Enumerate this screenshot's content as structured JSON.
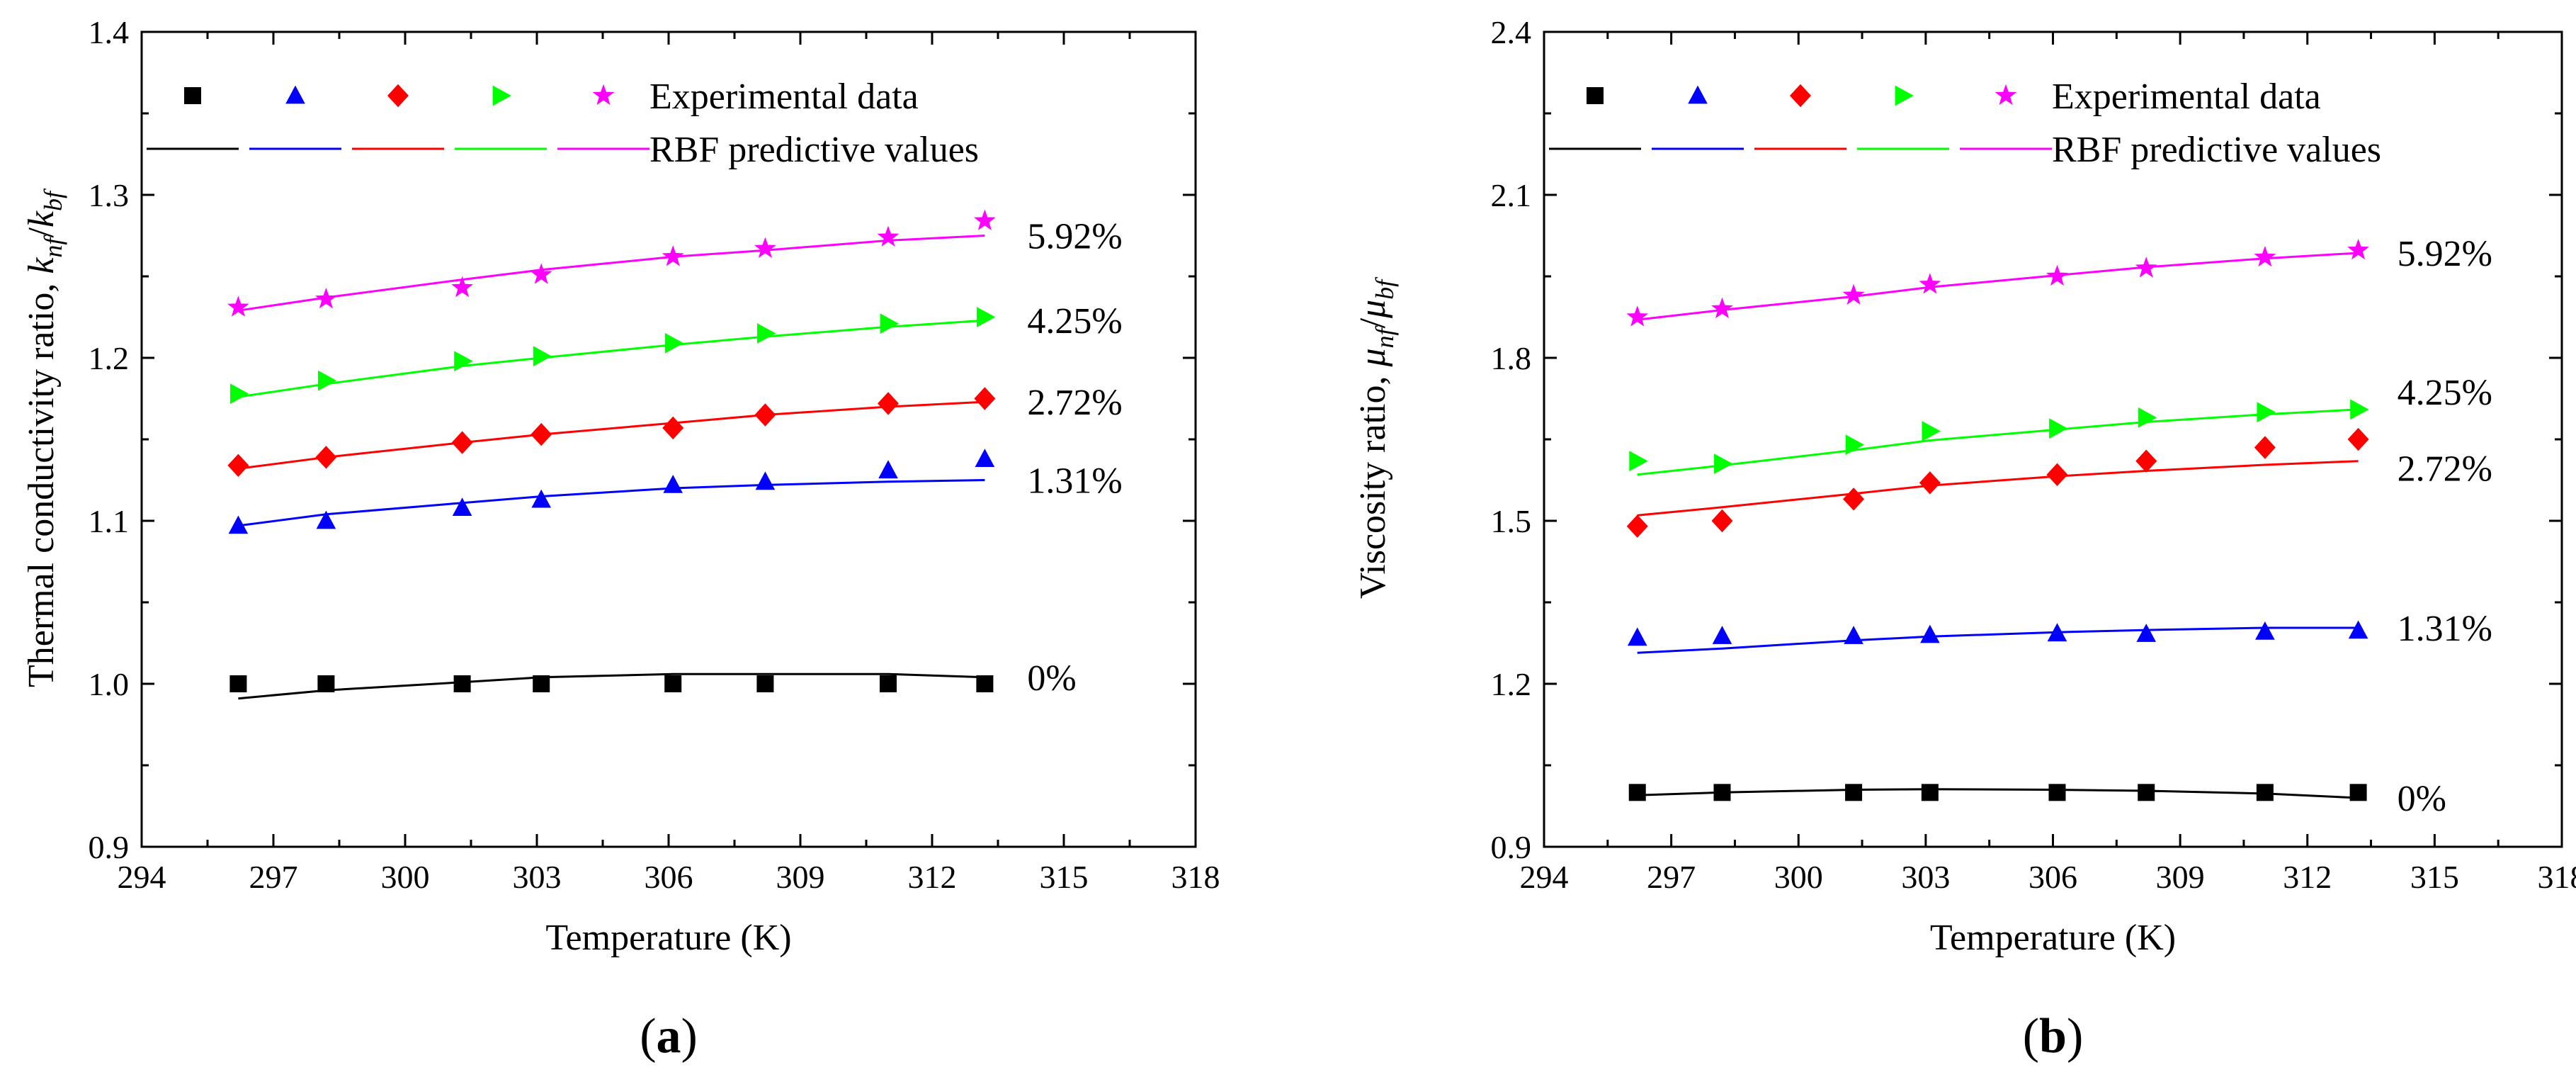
{
  "chart_data": [
    {
      "type": "scatter",
      "panel_label": "a",
      "xlabel": "Temperature (K)",
      "ylabel_prefix": "Thermal conductivity ratio, ",
      "ylabel_symbol": "k",
      "ylabel_num_sub": "nf",
      "ylabel_den_sub": "bf",
      "xlim": [
        294,
        318
      ],
      "ylim": [
        0.9,
        1.4
      ],
      "xticks": [
        "294",
        "297",
        "300",
        "303",
        "306",
        "309",
        "312",
        "315",
        "318"
      ],
      "yticks": [
        "0.9",
        "1.0",
        "1.1",
        "1.2",
        "1.3",
        "1.4"
      ],
      "grid": false,
      "legend": {
        "position": "top-left",
        "experimental_label": "Experimental data",
        "predicted_label": "RBF predictive values"
      },
      "series": [
        {
          "label": "0%",
          "color": "#000000",
          "marker": "square",
          "x": [
            296.2,
            298.2,
            301.3,
            303.1,
            306.1,
            308.2,
            311.0,
            313.2
          ],
          "experimental": [
            1.0,
            1.0,
            1.0,
            1.0,
            1.0,
            1.0,
            1.0,
            1.0
          ],
          "predicted_x": [
            296.2,
            298.2,
            301.3,
            303.1,
            306.1,
            308.2,
            311.0,
            313.2
          ],
          "predicted": [
            0.991,
            0.996,
            1.001,
            1.004,
            1.006,
            1.006,
            1.006,
            1.004
          ]
        },
        {
          "label": "1.31%",
          "color": "#0000ff",
          "marker": "triangle-up",
          "x": [
            296.2,
            298.2,
            301.3,
            303.1,
            306.1,
            308.2,
            311.0,
            313.2
          ],
          "experimental": [
            1.097,
            1.1,
            1.108,
            1.113,
            1.122,
            1.124,
            1.131,
            1.138
          ],
          "predicted_x": [
            296.2,
            298.2,
            301.3,
            303.1,
            306.1,
            308.2,
            311.0,
            313.2
          ],
          "predicted": [
            1.097,
            1.104,
            1.111,
            1.115,
            1.12,
            1.122,
            1.124,
            1.125
          ]
        },
        {
          "label": "2.72%",
          "color": "#ff0000",
          "marker": "diamond",
          "x": [
            296.2,
            298.2,
            301.3,
            303.1,
            306.1,
            308.2,
            311.0,
            313.2
          ],
          "experimental": [
            1.134,
            1.139,
            1.148,
            1.153,
            1.157,
            1.165,
            1.172,
            1.175
          ],
          "predicted_x": [
            296.2,
            298.2,
            301.3,
            303.1,
            306.1,
            308.2,
            311.0,
            313.2
          ],
          "predicted": [
            1.132,
            1.139,
            1.148,
            1.153,
            1.16,
            1.165,
            1.17,
            1.173
          ]
        },
        {
          "label": "4.25%",
          "color": "#00ff00",
          "marker": "triangle-right",
          "x": [
            296.2,
            298.2,
            301.3,
            303.1,
            306.1,
            308.2,
            311.0,
            313.2
          ],
          "experimental": [
            1.178,
            1.186,
            1.198,
            1.201,
            1.209,
            1.215,
            1.221,
            1.225
          ],
          "predicted_x": [
            296.2,
            298.2,
            301.3,
            303.1,
            306.1,
            308.2,
            311.0,
            313.2
          ],
          "predicted": [
            1.176,
            1.184,
            1.195,
            1.2,
            1.208,
            1.213,
            1.219,
            1.223
          ]
        },
        {
          "label": "5.92%",
          "color": "#ff00ff",
          "marker": "star",
          "x": [
            296.2,
            298.2,
            301.3,
            303.1,
            306.1,
            308.2,
            311.0,
            313.2
          ],
          "experimental": [
            1.231,
            1.236,
            1.243,
            1.251,
            1.262,
            1.267,
            1.274,
            1.284
          ],
          "predicted_x": [
            296.2,
            298.2,
            301.3,
            303.1,
            306.1,
            308.2,
            311.0,
            313.2
          ],
          "predicted": [
            1.229,
            1.237,
            1.248,
            1.254,
            1.262,
            1.266,
            1.272,
            1.275
          ]
        }
      ]
    },
    {
      "type": "scatter",
      "panel_label": "b",
      "xlabel": "Temperature (K)",
      "ylabel_prefix": "Viscosity ratio, ",
      "ylabel_symbol": "μ",
      "ylabel_num_sub": "nf",
      "ylabel_den_sub": "bf",
      "xlim": [
        294,
        318
      ],
      "ylim": [
        0.9,
        2.4
      ],
      "xticks": [
        "294",
        "297",
        "300",
        "303",
        "306",
        "309",
        "312",
        "315",
        "318"
      ],
      "yticks": [
        "0.9",
        "1.2",
        "1.5",
        "1.8",
        "2.1",
        "2.4"
      ],
      "grid": false,
      "legend": {
        "position": "top-left",
        "experimental_label": "Experimental data",
        "predicted_label": "RBF predictive values"
      },
      "series": [
        {
          "label": "0%",
          "color": "#000000",
          "marker": "square",
          "x": [
            296.2,
            298.2,
            301.3,
            303.1,
            306.1,
            308.2,
            311.0,
            313.2
          ],
          "experimental": [
            1.0,
            1.0,
            1.0,
            1.0,
            1.0,
            1.0,
            1.0,
            1.0
          ],
          "predicted_x": [
            296.2,
            298.2,
            301.3,
            303.1,
            306.1,
            308.2,
            311.0,
            313.2
          ],
          "predicted": [
            0.995,
            1.0,
            1.005,
            1.006,
            1.005,
            1.003,
            0.998,
            0.99
          ]
        },
        {
          "label": "1.31%",
          "color": "#0000ff",
          "marker": "triangle-up",
          "x": [
            296.2,
            298.2,
            301.3,
            303.1,
            306.1,
            308.2,
            311.0,
            313.2
          ],
          "experimental": [
            1.285,
            1.288,
            1.288,
            1.29,
            1.293,
            1.292,
            1.296,
            1.298
          ],
          "predicted_x": [
            296.2,
            298.2,
            301.3,
            303.1,
            306.1,
            308.2,
            311.0,
            313.2
          ],
          "predicted": [
            1.257,
            1.265,
            1.28,
            1.287,
            1.295,
            1.299,
            1.303,
            1.303
          ]
        },
        {
          "label": "2.72%",
          "color": "#ff0000",
          "marker": "diamond",
          "x": [
            296.2,
            298.2,
            301.3,
            303.1,
            306.1,
            308.2,
            311.0,
            313.2
          ],
          "experimental": [
            1.49,
            1.5,
            1.54,
            1.57,
            1.585,
            1.61,
            1.635,
            1.65
          ],
          "predicted_x": [
            296.2,
            298.2,
            301.3,
            303.1,
            306.1,
            308.2,
            311.0,
            313.2
          ],
          "predicted": [
            1.51,
            1.525,
            1.55,
            1.565,
            1.582,
            1.592,
            1.603,
            1.61
          ]
        },
        {
          "label": "4.25%",
          "color": "#00ff00",
          "marker": "triangle-right",
          "x": [
            296.2,
            298.2,
            301.3,
            303.1,
            306.1,
            308.2,
            311.0,
            313.2
          ],
          "experimental": [
            1.61,
            1.605,
            1.64,
            1.665,
            1.67,
            1.69,
            1.7,
            1.705
          ],
          "predicted_x": [
            296.2,
            298.2,
            301.3,
            303.1,
            306.1,
            308.2,
            311.0,
            313.2
          ],
          "predicted": [
            1.585,
            1.602,
            1.63,
            1.648,
            1.668,
            1.682,
            1.696,
            1.705
          ]
        },
        {
          "label": "5.92%",
          "color": "#ff00ff",
          "marker": "star",
          "x": [
            296.2,
            298.2,
            301.3,
            303.1,
            306.1,
            308.2,
            311.0,
            313.2
          ],
          "experimental": [
            1.875,
            1.89,
            1.915,
            1.935,
            1.95,
            1.965,
            1.985,
            1.998
          ],
          "predicted_x": [
            296.2,
            298.2,
            301.3,
            303.1,
            306.1,
            308.2,
            311.0,
            313.2
          ],
          "predicted": [
            1.87,
            1.888,
            1.913,
            1.93,
            1.952,
            1.967,
            1.983,
            1.993
          ]
        }
      ]
    }
  ]
}
